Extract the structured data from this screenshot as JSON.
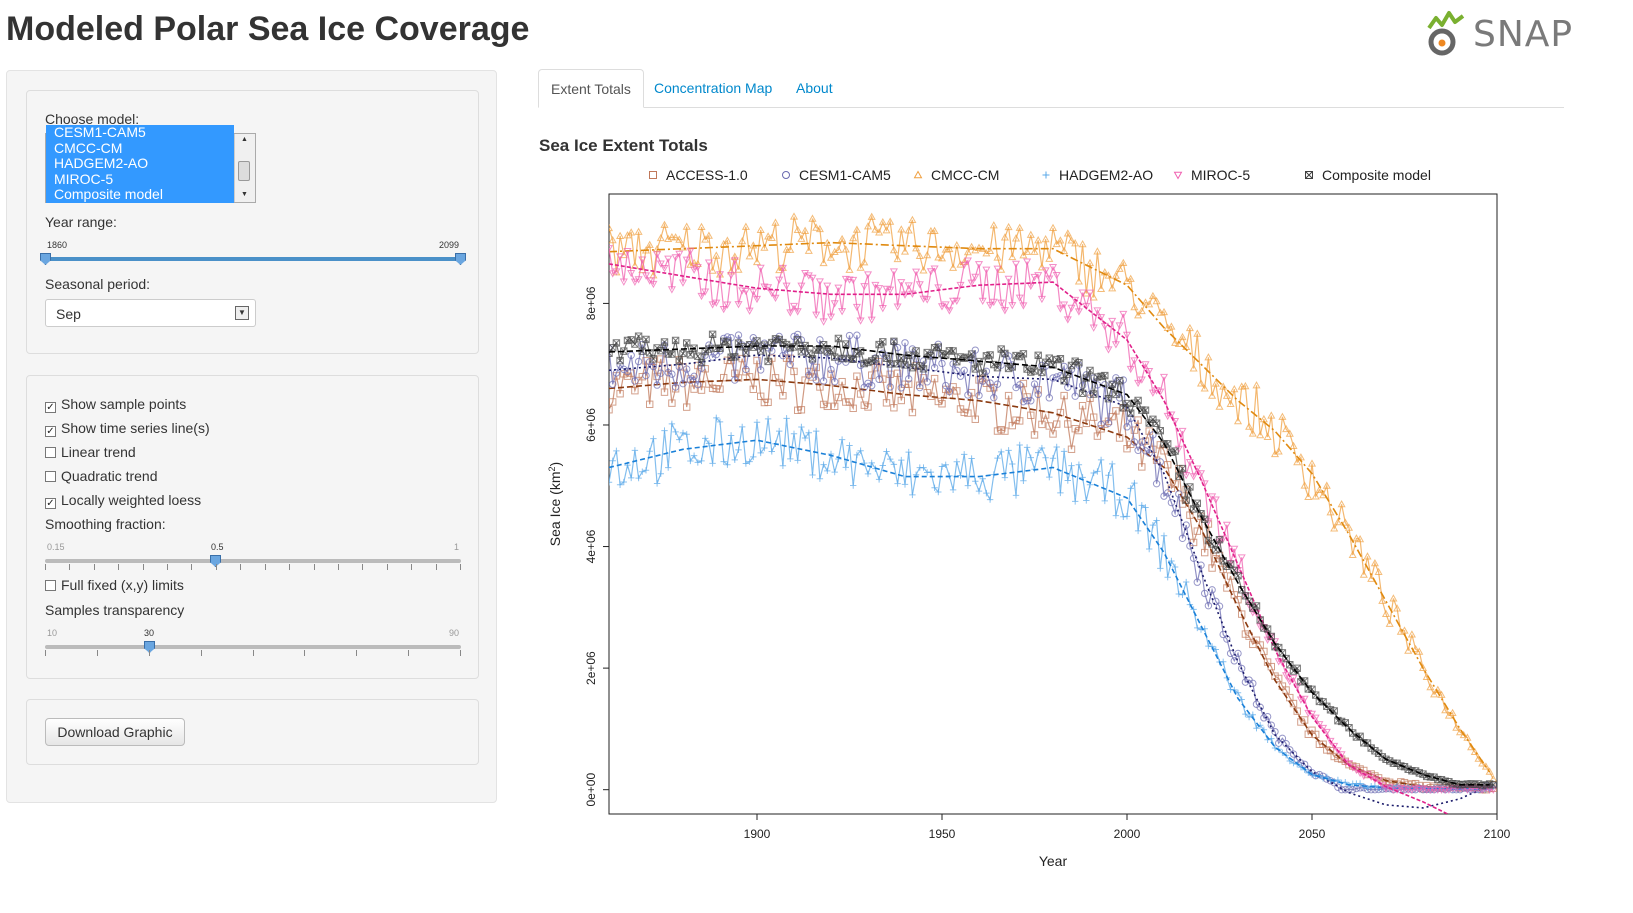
{
  "app": {
    "title": "Modeled Polar Sea Ice Coverage",
    "logo_text": "SNAP"
  },
  "sidebar": {
    "model_label": "Choose model:",
    "models": [
      "CESM1-CAM5",
      "CMCC-CM",
      "HADGEM2-AO",
      "MIROC-5",
      "Composite model"
    ],
    "year_range_label": "Year range:",
    "year_min": "1860",
    "year_max": "2099",
    "season_label": "Seasonal period:",
    "season_value": "Sep",
    "options": [
      {
        "label": "Show sample points",
        "checked": true
      },
      {
        "label": "Show time series line(s)",
        "checked": true
      },
      {
        "label": "Linear trend",
        "checked": false
      },
      {
        "label": "Quadratic trend",
        "checked": false
      },
      {
        "label": "Locally weighted loess",
        "checked": true
      }
    ],
    "smoothing_label": "Smoothing fraction:",
    "smoothing_min": "0.15",
    "smoothing_value": "0.5",
    "smoothing_max": "1",
    "fixed_limits_label": "Full fixed (x,y) limits",
    "fixed_limits_checked": false,
    "transparency_label": "Samples transparency",
    "transparency_min": "10",
    "transparency_value": "30",
    "transparency_max": "90",
    "download_label": "Download Graphic"
  },
  "tabs": [
    {
      "label": "Extent Totals",
      "active": true
    },
    {
      "label": "Concentration Map",
      "active": false
    },
    {
      "label": "About",
      "active": false
    }
  ],
  "chart_data": {
    "type": "line",
    "title": "Sea Ice Extent Totals",
    "xlabel": "Year",
    "ylabel": "Sea Ice (km",
    "ylabel_sup": "2",
    "ylabel_close": ")",
    "xlim": [
      1860,
      2100
    ],
    "ylim": [
      -400000,
      9800000
    ],
    "x_ticks": [
      1900,
      1950,
      2000,
      2050,
      2100
    ],
    "y_ticks": [
      0,
      2000000,
      4000000,
      6000000,
      8000000
    ],
    "y_tick_labels": [
      "0e+00",
      "2e+06",
      "4e+06",
      "6e+06",
      "8e+06"
    ],
    "legend_position": "top",
    "series": [
      {
        "name": "ACCESS-1.0",
        "color": "#c0785a",
        "smooth_color": "#8b3a10",
        "marker": "square",
        "x": [
          1860,
          1880,
          1900,
          1920,
          1940,
          1960,
          1980,
          2000,
          2010,
          2020,
          2030,
          2040,
          2050,
          2060,
          2070,
          2080,
          2090,
          2099
        ],
        "trend": [
          6600000,
          6700000,
          6750000,
          6650000,
          6500000,
          6400000,
          6200000,
          5800000,
          5300000,
          4300000,
          3000000,
          1800000,
          900000,
          400000,
          150000,
          50000,
          20000,
          10000
        ]
      },
      {
        "name": "CESM1-CAM5",
        "color": "#6a6ab0",
        "smooth_color": "#1a1a6a",
        "marker": "circle",
        "x": [
          1860,
          1880,
          1900,
          1920,
          1940,
          1960,
          1980,
          2000,
          2010,
          2020,
          2030,
          2040,
          2050,
          2060,
          2070,
          2080,
          2090,
          2099
        ],
        "trend": [
          6900000,
          7000000,
          7150000,
          7100000,
          6950000,
          6800000,
          6750000,
          6300000,
          5200000,
          3600000,
          2100000,
          900000,
          300000,
          -50000,
          -250000,
          -300000,
          -150000,
          100000
        ]
      },
      {
        "name": "CMCC-CM",
        "color": "#f0a040",
        "smooth_color": "#e08a10",
        "marker": "triangle-up",
        "x": [
          1860,
          1880,
          1900,
          1920,
          1940,
          1960,
          1980,
          2000,
          2010,
          2020,
          2030,
          2040,
          2050,
          2060,
          2070,
          2080,
          2090,
          2099
        ],
        "trend": [
          8850000,
          8900000,
          8950000,
          9000000,
          8950000,
          8900000,
          8900000,
          8300000,
          7600000,
          7000000,
          6400000,
          5900000,
          5200000,
          4200000,
          3100000,
          2000000,
          1000000,
          200000
        ]
      },
      {
        "name": "HADGEM2-AO",
        "color": "#5aa8e8",
        "smooth_color": "#1a80d8",
        "marker": "plus",
        "x": [
          1860,
          1880,
          1900,
          1920,
          1940,
          1960,
          1980,
          2000,
          2010,
          2020,
          2030,
          2040,
          2050,
          2060,
          2070,
          2080,
          2090,
          2099
        ],
        "trend": [
          5300000,
          5600000,
          5750000,
          5500000,
          5150000,
          5150000,
          5300000,
          4800000,
          3900000,
          2700000,
          1500000,
          700000,
          250000,
          80000,
          30000,
          20000,
          10000,
          10000
        ]
      },
      {
        "name": "MIROC-5",
        "color": "#f060b0",
        "smooth_color": "#e0208a",
        "marker": "triangle-down",
        "x": [
          1860,
          1880,
          1900,
          1920,
          1940,
          1960,
          1980,
          2000,
          2010,
          2020,
          2030,
          2040,
          2050,
          2060,
          2070,
          2080,
          2090,
          2099
        ],
        "trend": [
          8650000,
          8450000,
          8250000,
          8150000,
          8150000,
          8300000,
          8350000,
          7400000,
          6400000,
          5100000,
          3700000,
          2300000,
          1200000,
          400000,
          50000,
          -200000,
          -500000,
          -800000
        ]
      },
      {
        "name": "Composite model",
        "color": "#404040",
        "smooth_color": "#000000",
        "marker": "boxx",
        "x": [
          1860,
          1880,
          1900,
          1920,
          1940,
          1960,
          1980,
          2000,
          2010,
          2020,
          2030,
          2040,
          2050,
          2060,
          2070,
          2080,
          2090,
          2099
        ],
        "trend": [
          7200000,
          7250000,
          7300000,
          7300000,
          7150000,
          7050000,
          6950000,
          6500000,
          5700000,
          4500000,
          3400000,
          2400000,
          1600000,
          1000000,
          500000,
          250000,
          80000,
          80000
        ]
      }
    ]
  }
}
